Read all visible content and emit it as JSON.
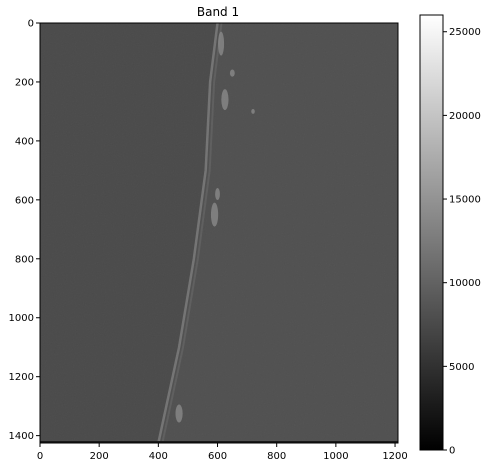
{
  "chart_data": {
    "type": "heatmap",
    "title": "Band 1",
    "xlabel": "",
    "ylabel": "",
    "x_ticks": [
      0,
      200,
      400,
      600,
      800,
      1000,
      1200
    ],
    "y_ticks": [
      0,
      200,
      400,
      600,
      800,
      1000,
      1200,
      1400
    ],
    "xlim": [
      0,
      1210
    ],
    "ylim": [
      1425,
      0
    ],
    "colormap": "gray",
    "colorbar": {
      "ticks": [
        0,
        5000,
        10000,
        15000,
        20000,
        25000
      ],
      "vmin": 0,
      "vmax": 26000
    },
    "grid": false,
    "background_gray": "#4a4a4a",
    "land_gray": "#505050",
    "coast_gray": "#7a7a7a"
  }
}
